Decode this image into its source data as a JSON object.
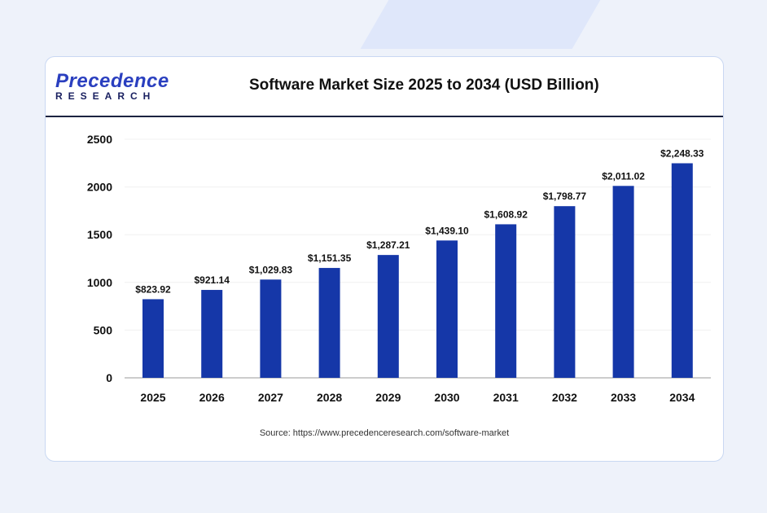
{
  "header": {
    "logo_line1": "Precedence",
    "logo_line2": "RESEARCH",
    "title": "Software Market Size 2025 to 2034 (USD Billion)"
  },
  "source": "Source: https://www.precedenceresearch.com/software-market",
  "chart_data": {
    "type": "bar",
    "title": "Software Market Size 2025 to 2034 (USD Billion)",
    "categories": [
      "2025",
      "2026",
      "2027",
      "2028",
      "2029",
      "2030",
      "2031",
      "2032",
      "2033",
      "2034"
    ],
    "values": [
      823.92,
      921.14,
      1029.83,
      1151.35,
      1287.21,
      1439.1,
      1608.92,
      1798.77,
      2011.02,
      2248.33
    ],
    "data_labels": [
      "$823.92",
      "$921.14",
      "$1,029.83",
      "$1,151.35",
      "$1,287.21",
      "$1,439.10",
      "$1,608.92",
      "$1,798.77",
      "$2,011.02",
      "$2,248.33"
    ],
    "yticks": [
      0,
      500,
      1000,
      1500,
      2000,
      2500
    ],
    "ylim": [
      0,
      2500
    ],
    "grid": true,
    "bar_color": "#1537a8"
  }
}
